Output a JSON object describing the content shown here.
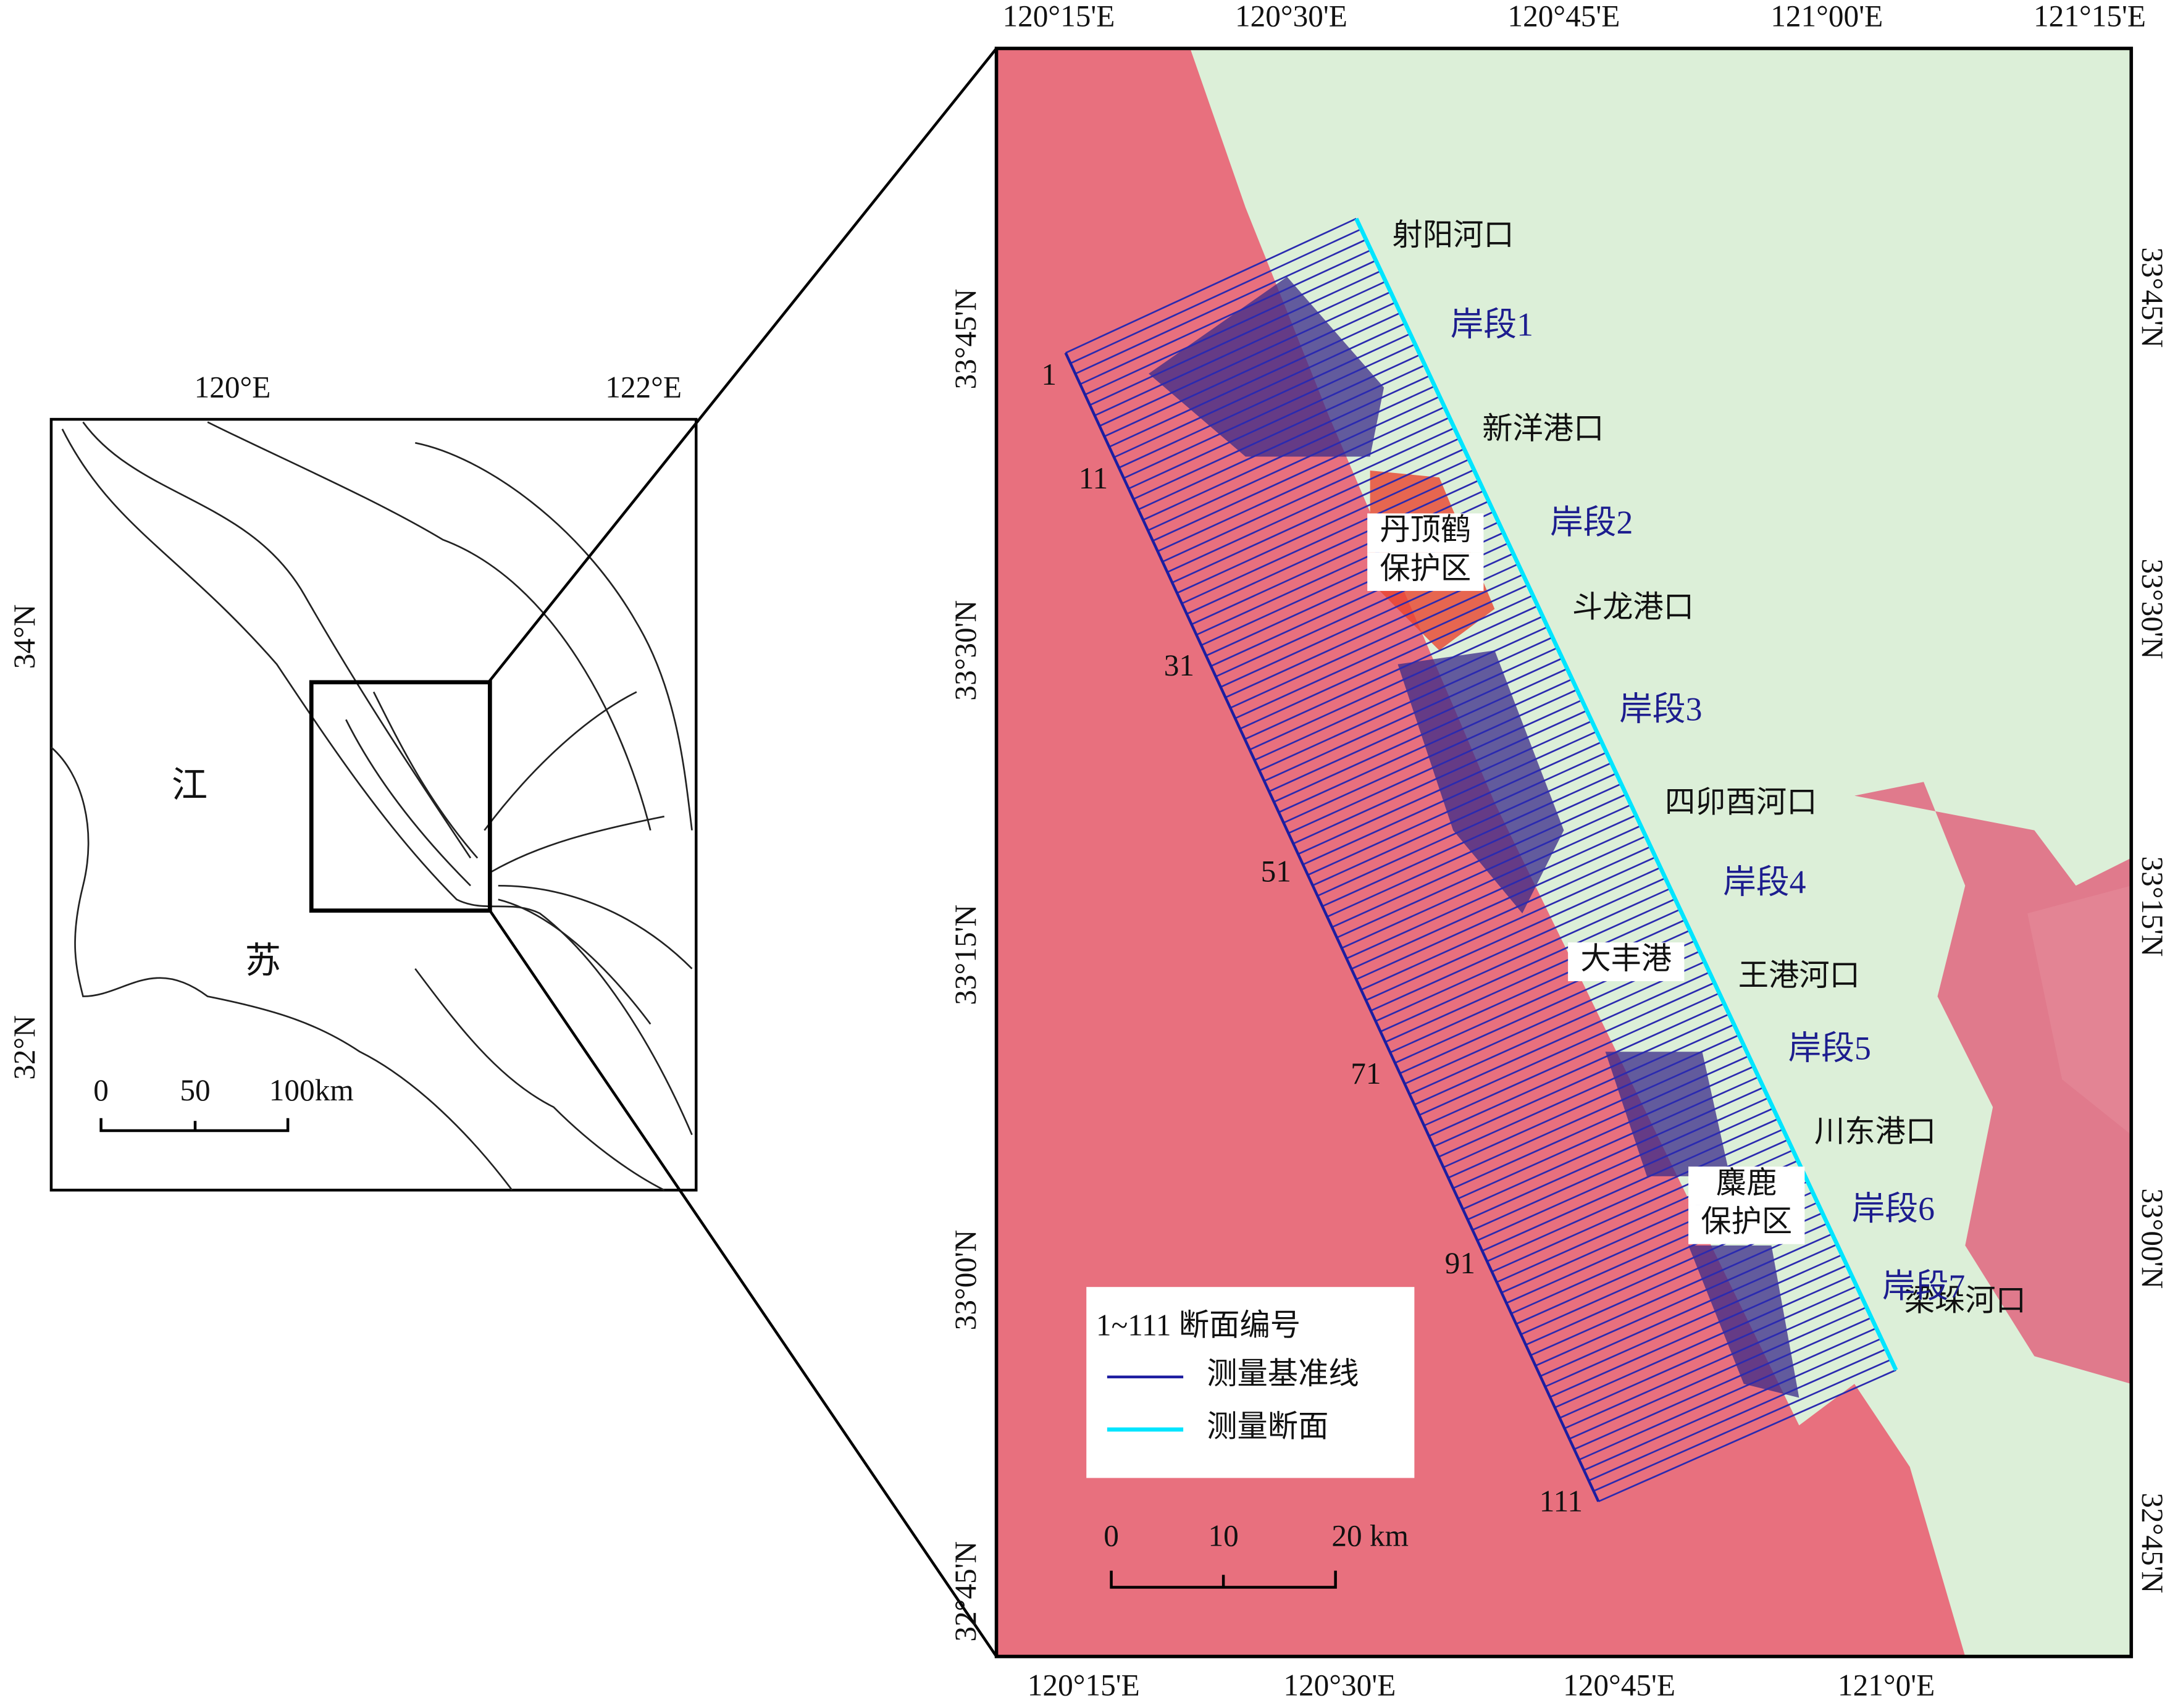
{
  "inset_map": {
    "top_ticks": [
      "120°E",
      "122°E"
    ],
    "left_ticks": [
      "34°N",
      "32°N"
    ],
    "labels": [
      "江",
      "苏"
    ],
    "scale_bar": [
      "0",
      "50",
      "100km"
    ]
  },
  "main_map": {
    "top_ticks": [
      "120°15'E",
      "120°30'E",
      "120°45'E",
      "121°00'E",
      "121°15'E"
    ],
    "bottom_ticks": [
      "120°15'E",
      "120°30'E",
      "120°45'E",
      "121°0'E"
    ],
    "left_ticks": [
      "33°45'N",
      "33°30'N",
      "33°15'N",
      "33°00'N",
      "32°45'N"
    ],
    "right_ticks": [
      "33°45'N",
      "33°30'N",
      "33°15'N",
      "33°00'N",
      "32°45'N"
    ],
    "places": [
      "射阳河口",
      "新洋港口",
      "斗龙港口",
      "四卯酉河口",
      "王港河口",
      "川东港口",
      "梁垛河口"
    ],
    "segments": [
      "岸段1",
      "岸段2",
      "岸段3",
      "岸段4",
      "岸段5",
      "岸段6",
      "岸段7"
    ],
    "boxed_labels": [
      [
        "丹顶鹤",
        "保护区"
      ],
      [
        "大丰港"
      ],
      [
        "麋鹿",
        "保护区"
      ]
    ],
    "section_numbers": [
      "1",
      "11",
      "31",
      "51",
      "71",
      "91",
      "111"
    ],
    "legend": {
      "title": "1~111 断面编号",
      "items": [
        "测量基准线",
        "测量断面"
      ]
    },
    "scale_bar": [
      "0",
      "10",
      "20 km"
    ]
  }
}
